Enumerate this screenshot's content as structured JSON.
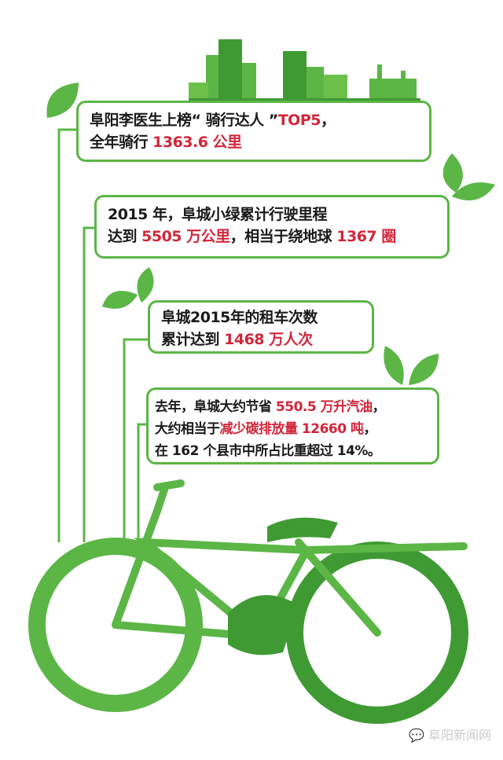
{
  "colors": {
    "accent_green": "#5bb646",
    "highlight_red": "#d2263a"
  },
  "box1": {
    "line1": "阜阳李医生上榜“ 骑行达人 ”",
    "line1_red": "TOP5",
    "line1_end": "，",
    "line2": "全年骑行 ",
    "line2_red": "1363.6 公里"
  },
  "box2": {
    "line1": "2015 年，阜城小绿累计行驶里程",
    "line2a": "达到 ",
    "line2_red1": "5505 万公里",
    "line2b": "，相当于绕地球 ",
    "line2_red2": "1367 圈"
  },
  "box3": {
    "line1": "阜城2015年的租车次数",
    "line2": "累计达到 ",
    "line2_red": "1468 万人次"
  },
  "box4": {
    "line1": "去年，阜城大约节省 ",
    "line1_red": "550.5 万升汽油",
    "line1_end": "，",
    "line2": "大约相当于",
    "line2_red": "减少碳排放量 12660 吨",
    "line2_end": "，",
    "line3": "在 162 个县市中所占比重超过 14%。"
  },
  "watermark": {
    "text": "阜阳新闻网",
    "icon": "wechat-icon"
  }
}
